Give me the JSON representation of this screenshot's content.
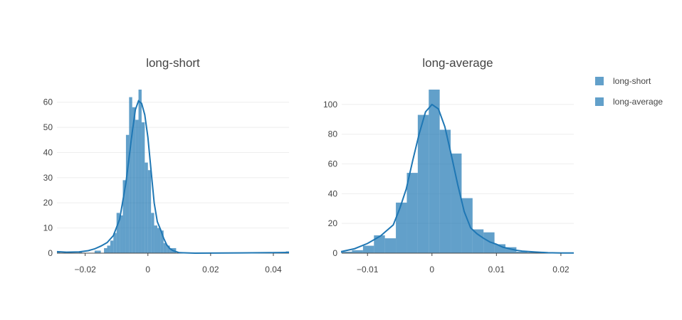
{
  "colors": {
    "bar": "#1f77b4",
    "curve": "#1f77b4",
    "grid": "#eeeeee",
    "text": "#444444"
  },
  "legend": {
    "position": "right",
    "entries": [
      "long-short",
      "long-average"
    ]
  },
  "chart_data": [
    {
      "type": "bar",
      "title": "long-short",
      "grid": true,
      "xlim": [
        -0.029,
        0.045
      ],
      "ylim": [
        0,
        65
      ],
      "xticks": [
        -0.02,
        0,
        0.02,
        0.04
      ],
      "xtick_labels": [
        "−0.02",
        "0",
        "0.02",
        "0.04"
      ],
      "yticks": [
        0,
        10,
        20,
        30,
        40,
        50,
        60
      ],
      "bin_width": 0.001,
      "histogram": [
        {
          "x": -0.029,
          "y": 0.5
        },
        {
          "x": -0.022,
          "y": 0.5
        },
        {
          "x": -0.017,
          "y": 1
        },
        {
          "x": -0.016,
          "y": 1
        },
        {
          "x": -0.014,
          "y": 2
        },
        {
          "x": -0.013,
          "y": 3
        },
        {
          "x": -0.012,
          "y": 5
        },
        {
          "x": -0.011,
          "y": 8
        },
        {
          "x": -0.01,
          "y": 16
        },
        {
          "x": -0.009,
          "y": 15
        },
        {
          "x": -0.008,
          "y": 29
        },
        {
          "x": -0.007,
          "y": 47
        },
        {
          "x": -0.006,
          "y": 62
        },
        {
          "x": -0.005,
          "y": 58
        },
        {
          "x": -0.004,
          "y": 53
        },
        {
          "x": -0.003,
          "y": 65
        },
        {
          "x": -0.002,
          "y": 52
        },
        {
          "x": -0.001,
          "y": 36
        },
        {
          "x": 0.0,
          "y": 33
        },
        {
          "x": 0.001,
          "y": 16
        },
        {
          "x": 0.002,
          "y": 11
        },
        {
          "x": 0.003,
          "y": 10
        },
        {
          "x": 0.004,
          "y": 9
        },
        {
          "x": 0.005,
          "y": 4
        },
        {
          "x": 0.006,
          "y": 3
        },
        {
          "x": 0.007,
          "y": 2
        },
        {
          "x": 0.008,
          "y": 2
        },
        {
          "x": 0.044,
          "y": 0.7
        }
      ],
      "kde": [
        [
          -0.029,
          0.6
        ],
        [
          -0.026,
          0.4
        ],
        [
          -0.022,
          0.5
        ],
        [
          -0.019,
          1.0
        ],
        [
          -0.017,
          1.7
        ],
        [
          -0.015,
          2.8
        ],
        [
          -0.013,
          4.2
        ],
        [
          -0.011,
          7
        ],
        [
          -0.009,
          13.5
        ],
        [
          -0.007,
          28
        ],
        [
          -0.005,
          48
        ],
        [
          -0.004,
          57
        ],
        [
          -0.003,
          60.5
        ],
        [
          -0.002,
          59.5
        ],
        [
          -0.001,
          55
        ],
        [
          0.0,
          46
        ],
        [
          0.001,
          33
        ],
        [
          0.002,
          20
        ],
        [
          0.003,
          12.5
        ],
        [
          0.004,
          9.5
        ],
        [
          0.005,
          6
        ],
        [
          0.006,
          3.3
        ],
        [
          0.007,
          1.8
        ],
        [
          0.008,
          1.0
        ],
        [
          0.01,
          0.2
        ],
        [
          0.015,
          0.0
        ],
        [
          0.03,
          0.1
        ],
        [
          0.04,
          0.2
        ],
        [
          0.045,
          0.3
        ]
      ]
    },
    {
      "type": "bar",
      "title": "long-average",
      "grid": true,
      "xlim": [
        -0.014,
        0.022
      ],
      "ylim": [
        0,
        110
      ],
      "xticks": [
        -0.01,
        0,
        0.01,
        0.02
      ],
      "xtick_labels": [
        "−0.01",
        "0",
        "0.01",
        "0.02"
      ],
      "yticks": [
        0,
        20,
        40,
        60,
        80,
        100
      ],
      "bin_width": 0.0017,
      "histogram": [
        {
          "x": -0.0141,
          "y": 1
        },
        {
          "x": -0.0124,
          "y": 2
        },
        {
          "x": -0.0107,
          "y": 5
        },
        {
          "x": -0.009,
          "y": 12
        },
        {
          "x": -0.0073,
          "y": 10
        },
        {
          "x": -0.0056,
          "y": 34
        },
        {
          "x": -0.0039,
          "y": 54
        },
        {
          "x": -0.0022,
          "y": 93
        },
        {
          "x": -0.0005,
          "y": 110
        },
        {
          "x": 0.0012,
          "y": 83
        },
        {
          "x": 0.0029,
          "y": 67
        },
        {
          "x": 0.0046,
          "y": 37
        },
        {
          "x": 0.0063,
          "y": 16
        },
        {
          "x": 0.008,
          "y": 14
        },
        {
          "x": 0.0097,
          "y": 6
        },
        {
          "x": 0.0114,
          "y": 4
        },
        {
          "x": 0.0131,
          "y": 1
        },
        {
          "x": 0.0148,
          "y": 0.5
        },
        {
          "x": 0.0199,
          "y": 0.5
        }
      ],
      "kde": [
        [
          -0.0141,
          1
        ],
        [
          -0.012,
          3
        ],
        [
          -0.01,
          6.5
        ],
        [
          -0.008,
          11.5
        ],
        [
          -0.006,
          19
        ],
        [
          -0.005,
          30
        ],
        [
          -0.004,
          43
        ],
        [
          -0.003,
          62
        ],
        [
          -0.002,
          80
        ],
        [
          -0.001,
          95
        ],
        [
          0.0,
          100
        ],
        [
          0.001,
          97
        ],
        [
          0.002,
          85
        ],
        [
          0.003,
          66
        ],
        [
          0.004,
          46
        ],
        [
          0.005,
          28
        ],
        [
          0.006,
          17
        ],
        [
          0.007,
          13
        ],
        [
          0.008,
          10
        ],
        [
          0.009,
          7.5
        ],
        [
          0.01,
          6
        ],
        [
          0.011,
          4
        ],
        [
          0.012,
          3
        ],
        [
          0.013,
          2
        ],
        [
          0.014,
          1.4
        ],
        [
          0.016,
          0.8
        ],
        [
          0.018,
          0.3
        ],
        [
          0.02,
          0.1
        ],
        [
          0.022,
          0.1
        ]
      ]
    }
  ]
}
